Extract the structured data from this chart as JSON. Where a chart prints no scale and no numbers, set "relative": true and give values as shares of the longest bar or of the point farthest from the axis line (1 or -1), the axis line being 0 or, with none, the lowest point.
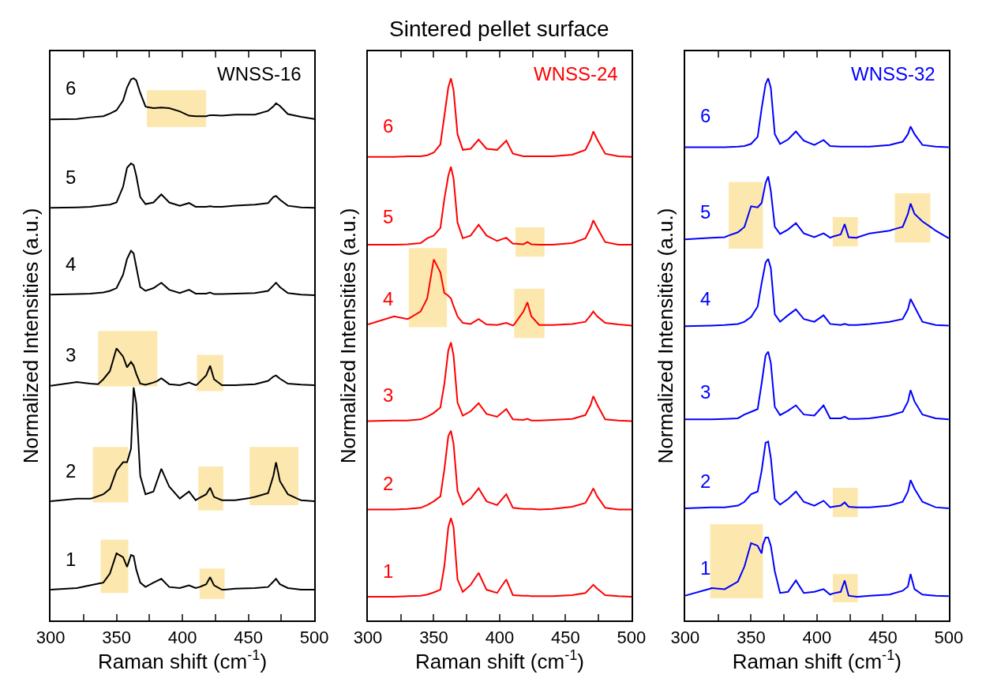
{
  "chart_data": [
    {
      "type": "line",
      "relative": true,
      "legend": false,
      "xlabel": "Raman shift (cm$^{-1}$)",
      "ylabel": "Normalized Intensities (a.u.)",
      "annotations": [
        "WNSS-16"
      ],
      "xlim": [
        300,
        500
      ],
      "xticks": [
        300,
        {
          "value": 325,
          "label": null
        },
        350,
        {
          "value": 375,
          "label": null
        },
        400,
        {
          "value": 425,
          "label": null
        },
        450,
        {
          "value": 475,
          "label": null
        },
        500
      ],
      "x": [
        300,
        320,
        330,
        340,
        345,
        350,
        355,
        358,
        361,
        363,
        365,
        368,
        372,
        378,
        384,
        390,
        398,
        405,
        410,
        418,
        421,
        424,
        430,
        440,
        455,
        465,
        469,
        471,
        474,
        480,
        490,
        500
      ],
      "series": [
        {
          "name": "1",
          "color": "#000000",
          "x": [
            300,
            320,
            330,
            338,
            340,
            345,
            350,
            355,
            358,
            359,
            361,
            363,
            365,
            368,
            372,
            378,
            384,
            390,
            398,
            405,
            410,
            413,
            418,
            421,
            424,
            430,
            432,
            440,
            455,
            465,
            469,
            471,
            474,
            480,
            490,
            500
          ],
          "values": [
            0.057,
            0.06,
            0.065,
            0.069,
            0.07,
            0.087,
            0.124,
            0.117,
            0.099,
            0.106,
            0.121,
            0.119,
            0.094,
            0.07,
            0.062,
            0.07,
            0.077,
            0.062,
            0.06,
            0.065,
            0.06,
            0.062,
            0.067,
            0.08,
            0.065,
            0.057,
            0.057,
            0.059,
            0.06,
            0.062,
            0.072,
            0.077,
            0.067,
            0.06,
            0.057,
            0.057
          ],
          "lower": [
            null,
            null,
            null,
            0.051,
            0.051,
            0.051,
            0.051,
            0.051,
            0.051,
            0.051,
            null,
            null,
            null,
            null,
            null,
            null,
            null,
            null,
            null,
            null,
            null,
            0.04,
            0.04,
            0.04,
            0.04,
            0.04,
            0.04,
            null,
            null,
            null,
            null,
            null,
            null,
            null,
            null,
            null
          ],
          "upper": [
            null,
            null,
            null,
            0.149,
            0.149,
            0.149,
            0.149,
            0.149,
            0.149,
            0.149,
            null,
            null,
            null,
            null,
            null,
            null,
            null,
            null,
            null,
            null,
            null,
            0.096,
            0.096,
            0.096,
            0.096,
            0.096,
            0.096,
            null,
            null,
            null,
            null,
            null,
            null,
            null,
            null,
            null
          ]
        },
        {
          "name": "2",
          "color": "#000000",
          "x": [
            300,
            320,
            330,
            332,
            340,
            345,
            350,
            355,
            358,
            359,
            361,
            363,
            365,
            368,
            372,
            378,
            384,
            390,
            398,
            405,
            410,
            412,
            418,
            421,
            424,
            430,
            431,
            440,
            451,
            455,
            465,
            469,
            471,
            474,
            480,
            488,
            490,
            500
          ],
          "values": [
            0.22,
            0.225,
            0.225,
            0.226,
            0.233,
            0.243,
            0.277,
            0.292,
            0.292,
            0.3,
            0.317,
            0.43,
            0.4,
            0.267,
            0.233,
            0.238,
            0.28,
            0.247,
            0.225,
            0.238,
            0.222,
            0.225,
            0.233,
            0.245,
            0.228,
            0.222,
            0.222,
            0.222,
            0.226,
            0.228,
            0.235,
            0.267,
            0.292,
            0.257,
            0.233,
            0.224,
            0.222,
            0.22
          ],
          "lower": [
            null,
            null,
            null,
            0.218,
            0.218,
            0.218,
            0.218,
            0.218,
            0.218,
            0.218,
            null,
            null,
            null,
            null,
            null,
            null,
            null,
            null,
            null,
            null,
            null,
            0.203,
            0.203,
            0.203,
            0.203,
            0.203,
            0.203,
            null,
            0.213,
            0.213,
            0.213,
            0.213,
            0.213,
            0.213,
            0.213,
            0.213,
            null,
            null
          ],
          "upper": [
            null,
            null,
            null,
            0.32,
            0.32,
            0.32,
            0.32,
            0.32,
            0.32,
            0.32,
            null,
            null,
            null,
            null,
            null,
            null,
            null,
            null,
            null,
            null,
            null,
            0.284,
            0.284,
            0.284,
            0.284,
            0.284,
            0.284,
            null,
            0.32,
            0.32,
            0.32,
            0.32,
            0.32,
            0.32,
            0.32,
            0.32,
            null,
            null
          ]
        },
        {
          "name": "3",
          "color": "#000000",
          "x": [
            300,
            320,
            330,
            336,
            340,
            345,
            350,
            355,
            358,
            361,
            363,
            365,
            368,
            372,
            378,
            381,
            384,
            390,
            398,
            405,
            410,
            411,
            418,
            421,
            424,
            430,
            431,
            440,
            455,
            465,
            469,
            471,
            474,
            480,
            490,
            500
          ],
          "values": [
            0.433,
            0.44,
            0.437,
            0.436,
            0.445,
            0.46,
            0.502,
            0.487,
            0.467,
            0.477,
            0.47,
            0.455,
            0.437,
            0.435,
            0.439,
            0.442,
            0.447,
            0.436,
            0.434,
            0.439,
            0.434,
            0.435,
            0.452,
            0.47,
            0.445,
            0.434,
            0.434,
            0.434,
            0.436,
            0.442,
            0.45,
            0.452,
            0.446,
            0.437,
            0.435,
            0.434
          ],
          "lower": [
            null,
            null,
            null,
            0.432,
            0.432,
            0.432,
            0.432,
            0.432,
            0.432,
            0.432,
            0.432,
            0.432,
            0.432,
            0.432,
            0.432,
            0.432,
            null,
            null,
            null,
            null,
            null,
            0.423,
            0.423,
            0.423,
            0.423,
            0.423,
            0.423,
            null,
            null,
            null,
            null,
            null,
            null,
            null,
            null,
            null
          ],
          "upper": [
            null,
            null,
            null,
            0.534,
            0.534,
            0.534,
            0.534,
            0.534,
            0.534,
            0.534,
            0.534,
            0.534,
            0.534,
            0.534,
            0.534,
            0.534,
            null,
            null,
            null,
            null,
            null,
            0.49,
            0.49,
            0.49,
            0.49,
            0.49,
            0.49,
            null,
            null,
            null,
            null,
            null,
            null,
            null,
            null,
            null
          ]
        },
        {
          "name": "4",
          "color": "#000000",
          "values": [
            0.601,
            0.602,
            0.603,
            0.605,
            0.608,
            0.613,
            0.638,
            0.667,
            0.682,
            0.677,
            0.652,
            0.615,
            0.608,
            0.613,
            0.623,
            0.61,
            0.604,
            0.61,
            0.603,
            0.603,
            0.605,
            0.602,
            0.602,
            0.603,
            0.604,
            0.608,
            0.618,
            0.623,
            0.615,
            0.604,
            0.601,
            0.6
          ]
        },
        {
          "name": "5",
          "color": "#000000",
          "values": [
            0.761,
            0.762,
            0.763,
            0.766,
            0.767,
            0.771,
            0.8,
            0.835,
            0.843,
            0.84,
            0.82,
            0.781,
            0.768,
            0.771,
            0.786,
            0.771,
            0.765,
            0.77,
            0.763,
            0.763,
            0.764,
            0.763,
            0.763,
            0.765,
            0.767,
            0.77,
            0.781,
            0.783,
            0.776,
            0.765,
            0.762,
            0.761
          ]
        },
        {
          "name": "6",
          "color": "#000000",
          "x": [
            300,
            320,
            330,
            340,
            345,
            350,
            355,
            358,
            361,
            363,
            365,
            368,
            372,
            373,
            378,
            384,
            390,
            398,
            405,
            410,
            418,
            421,
            424,
            430,
            440,
            455,
            465,
            469,
            471,
            474,
            480,
            490,
            500
          ],
          "values": [
            0.924,
            0.925,
            0.928,
            0.93,
            0.935,
            0.941,
            0.959,
            0.983,
            0.998,
            1.0,
            0.996,
            0.973,
            0.948,
            0.947,
            0.945,
            0.946,
            0.945,
            0.939,
            0.931,
            0.93,
            0.93,
            0.932,
            0.932,
            0.931,
            0.933,
            0.933,
            0.94,
            0.948,
            0.954,
            0.949,
            0.934,
            0.929,
            0.925
          ],
          "lower": [
            null,
            null,
            null,
            null,
            null,
            null,
            null,
            null,
            null,
            null,
            null,
            null,
            null,
            0.91,
            0.91,
            0.91,
            0.91,
            0.91,
            0.91,
            0.91,
            0.91,
            null,
            null,
            null,
            null,
            null,
            null,
            null,
            null,
            null,
            null,
            null,
            null
          ],
          "upper": [
            null,
            null,
            null,
            null,
            null,
            null,
            null,
            null,
            null,
            null,
            null,
            null,
            null,
            0.978,
            0.978,
            0.978,
            0.978,
            0.978,
            0.978,
            0.978,
            0.978,
            null,
            null,
            null,
            null,
            null,
            null,
            null,
            null,
            null,
            null,
            null,
            null
          ]
        }
      ]
    },
    {
      "type": "line",
      "relative": true,
      "legend": false,
      "title": "Sintered pellet surface",
      "xlabel": "Raman shift (cm$^{-1}$)",
      "ylabel": "Normalized Intensities (a.u.)",
      "annotations": [
        "WNSS-24"
      ],
      "xlim": [
        300,
        500
      ],
      "xticks": [
        300,
        {
          "value": 325,
          "label": null
        },
        350,
        {
          "value": 375,
          "label": null
        },
        400,
        {
          "value": 425,
          "label": null
        },
        450,
        {
          "value": 475,
          "label": null
        },
        500
      ],
      "x": [
        300,
        320,
        330,
        340,
        345,
        350,
        355,
        358,
        361,
        363,
        365,
        368,
        372,
        378,
        384,
        390,
        398,
        405,
        410,
        418,
        421,
        424,
        430,
        440,
        455,
        465,
        469,
        471,
        474,
        480,
        490,
        500
      ],
      "series": [
        {
          "name": "1",
          "color": "#ff0000",
          "values": [
            0.044,
            0.044,
            0.045,
            0.046,
            0.048,
            0.052,
            0.057,
            0.1,
            0.172,
            0.189,
            0.172,
            0.076,
            0.053,
            0.066,
            0.088,
            0.057,
            0.051,
            0.076,
            0.047,
            0.046,
            0.046,
            0.045,
            0.045,
            0.045,
            0.047,
            0.051,
            0.061,
            0.066,
            0.059,
            0.047,
            0.045,
            0.044
          ]
        },
        {
          "name": "2",
          "color": "#ff0000",
          "values": [
            0.205,
            0.205,
            0.206,
            0.208,
            0.213,
            0.22,
            0.229,
            0.278,
            0.34,
            0.35,
            0.326,
            0.239,
            0.214,
            0.225,
            0.244,
            0.22,
            0.213,
            0.233,
            0.208,
            0.206,
            0.206,
            0.206,
            0.205,
            0.206,
            0.21,
            0.217,
            0.234,
            0.244,
            0.229,
            0.208,
            0.205,
            0.205
          ]
        },
        {
          "name": "3",
          "color": "#ff0000",
          "values": [
            0.368,
            0.369,
            0.369,
            0.371,
            0.376,
            0.383,
            0.393,
            0.436,
            0.498,
            0.513,
            0.489,
            0.402,
            0.378,
            0.386,
            0.401,
            0.381,
            0.376,
            0.39,
            0.371,
            0.37,
            0.372,
            0.369,
            0.369,
            0.37,
            0.372,
            0.379,
            0.398,
            0.414,
            0.398,
            0.371,
            0.369,
            0.368
          ]
        },
        {
          "name": "4",
          "color": "#ff0000",
          "x": [
            300,
            320,
            330,
            331,
            340,
            345,
            350,
            355,
            358,
            360,
            361,
            363,
            365,
            368,
            372,
            378,
            384,
            390,
            398,
            405,
            410,
            411,
            418,
            421,
            424,
            430,
            434,
            440,
            455,
            465,
            469,
            471,
            474,
            480,
            490,
            500
          ],
          "values": [
            0.546,
            0.561,
            0.556,
            0.557,
            0.57,
            0.594,
            0.666,
            0.642,
            0.604,
            0.601,
            0.599,
            0.594,
            0.58,
            0.561,
            0.549,
            0.547,
            0.556,
            0.546,
            0.545,
            0.549,
            0.544,
            0.546,
            0.57,
            0.587,
            0.561,
            0.545,
            0.545,
            0.545,
            0.547,
            0.551,
            0.563,
            0.57,
            0.561,
            0.549,
            0.546,
            0.544
          ],
          "lower": [
            null,
            null,
            null,
            0.541,
            0.541,
            0.541,
            0.541,
            0.541,
            0.541,
            0.541,
            null,
            null,
            null,
            null,
            null,
            null,
            null,
            null,
            null,
            null,
            null,
            0.521,
            0.521,
            0.521,
            0.521,
            0.521,
            0.521,
            null,
            null,
            null,
            null,
            null,
            null,
            null,
            null,
            null
          ],
          "upper": [
            null,
            null,
            null,
            0.687,
            0.687,
            0.687,
            0.687,
            0.687,
            0.687,
            0.687,
            null,
            null,
            null,
            null,
            null,
            null,
            null,
            null,
            null,
            null,
            null,
            0.612,
            0.612,
            0.612,
            0.612,
            0.612,
            0.612,
            null,
            null,
            null,
            null,
            null,
            null,
            null,
            null,
            null
          ]
        },
        {
          "name": "5",
          "color": "#ff0000",
          "x": [
            300,
            320,
            330,
            340,
            345,
            350,
            355,
            358,
            361,
            363,
            365,
            368,
            372,
            378,
            384,
            390,
            398,
            405,
            410,
            412,
            418,
            421,
            424,
            430,
            434,
            440,
            455,
            465,
            469,
            471,
            474,
            480,
            490,
            500
          ],
          "values": [
            0.693,
            0.693,
            0.694,
            0.696,
            0.705,
            0.71,
            0.724,
            0.777,
            0.82,
            0.837,
            0.815,
            0.734,
            0.705,
            0.71,
            0.73,
            0.71,
            0.7,
            0.706,
            0.695,
            0.695,
            0.694,
            0.698,
            0.694,
            0.693,
            0.693,
            0.693,
            0.696,
            0.705,
            0.724,
            0.738,
            0.724,
            0.698,
            0.693,
            0.693
          ],
          "lower": [
            null,
            null,
            null,
            null,
            null,
            null,
            null,
            null,
            null,
            null,
            null,
            null,
            null,
            null,
            null,
            null,
            null,
            null,
            null,
            0.671,
            0.671,
            0.671,
            0.671,
            0.671,
            0.671,
            null,
            null,
            null,
            null,
            null,
            null,
            null,
            null,
            null
          ],
          "upper": [
            null,
            null,
            null,
            null,
            null,
            null,
            null,
            null,
            null,
            null,
            null,
            null,
            null,
            null,
            null,
            null,
            null,
            null,
            null,
            0.725,
            0.725,
            0.725,
            0.725,
            0.725,
            0.725,
            null,
            null,
            null,
            null,
            null,
            null,
            null,
            null,
            null
          ]
        },
        {
          "name": "6",
          "color": "#ff0000",
          "values": [
            0.855,
            0.855,
            0.856,
            0.856,
            0.858,
            0.863,
            0.878,
            0.93,
            0.983,
            1.0,
            0.978,
            0.897,
            0.868,
            0.87,
            0.887,
            0.87,
            0.868,
            0.885,
            0.861,
            0.856,
            0.856,
            0.856,
            0.856,
            0.856,
            0.859,
            0.868,
            0.887,
            0.902,
            0.887,
            0.861,
            0.856,
            0.855
          ]
        }
      ]
    },
    {
      "type": "line",
      "relative": true,
      "legend": false,
      "xlabel": "Raman shift (cm$^{-1}$)",
      "ylabel": "Normalized Intensities (a.u.)",
      "annotations": [
        "WNSS-32"
      ],
      "xlim": [
        300,
        500
      ],
      "xticks": [
        300,
        {
          "value": 325,
          "label": null
        },
        350,
        {
          "value": 375,
          "label": null
        },
        400,
        {
          "value": 425,
          "label": null
        },
        450,
        {
          "value": 475,
          "label": null
        },
        500
      ],
      "x": [
        300,
        320,
        330,
        340,
        345,
        350,
        355,
        358,
        361,
        363,
        365,
        368,
        372,
        378,
        384,
        390,
        398,
        405,
        410,
        418,
        421,
        424,
        430,
        440,
        455,
        465,
        469,
        471,
        474,
        480,
        490,
        500
      ],
      "series": [
        {
          "name": "1",
          "color": "#0000ff",
          "x": [
            300,
            319,
            320,
            330,
            340,
            345,
            350,
            355,
            358,
            359,
            361,
            363,
            365,
            368,
            372,
            378,
            384,
            390,
            398,
            405,
            410,
            412,
            418,
            421,
            424,
            430,
            431,
            440,
            455,
            465,
            469,
            471,
            474,
            480,
            490,
            500
          ],
          "values": [
            0.046,
            0.059,
            0.06,
            0.058,
            0.072,
            0.1,
            0.143,
            0.138,
            0.124,
            0.14,
            0.153,
            0.153,
            0.138,
            0.091,
            0.051,
            0.053,
            0.074,
            0.051,
            0.053,
            0.058,
            0.048,
            0.05,
            0.053,
            0.074,
            0.046,
            0.044,
            0.044,
            0.046,
            0.048,
            0.055,
            0.063,
            0.086,
            0.058,
            0.048,
            0.046,
            0.045
          ],
          "lower": [
            null,
            0.041,
            0.041,
            0.041,
            0.041,
            0.041,
            0.041,
            0.041,
            0.041,
            0.041,
            null,
            null,
            null,
            null,
            null,
            null,
            null,
            null,
            null,
            null,
            null,
            0.034,
            0.034,
            0.034,
            0.034,
            0.034,
            0.034,
            null,
            null,
            null,
            null,
            null,
            null,
            null,
            null,
            null
          ],
          "upper": [
            null,
            0.178,
            0.178,
            0.178,
            0.178,
            0.178,
            0.178,
            0.178,
            0.178,
            0.178,
            null,
            null,
            null,
            null,
            null,
            null,
            null,
            null,
            null,
            null,
            null,
            0.086,
            0.086,
            0.086,
            0.086,
            0.086,
            0.086,
            null,
            null,
            null,
            null,
            null,
            null,
            null,
            null,
            null
          ]
        },
        {
          "name": "2",
          "color": "#0000ff",
          "x": [
            300,
            320,
            330,
            340,
            345,
            350,
            355,
            358,
            361,
            363,
            365,
            368,
            372,
            378,
            384,
            390,
            398,
            405,
            410,
            412,
            418,
            421,
            424,
            430,
            431,
            440,
            455,
            465,
            469,
            471,
            474,
            480,
            490,
            500
          ],
          "values": [
            0.207,
            0.209,
            0.209,
            0.212,
            0.219,
            0.233,
            0.238,
            0.276,
            0.328,
            0.33,
            0.3,
            0.224,
            0.214,
            0.224,
            0.238,
            0.219,
            0.212,
            0.221,
            0.209,
            0.21,
            0.212,
            0.218,
            0.21,
            0.209,
            0.209,
            0.209,
            0.212,
            0.219,
            0.238,
            0.259,
            0.243,
            0.219,
            0.209,
            0.207
          ],
          "lower": [
            null,
            null,
            null,
            null,
            null,
            null,
            null,
            null,
            null,
            null,
            null,
            null,
            null,
            null,
            null,
            null,
            null,
            null,
            null,
            0.191,
            0.191,
            0.191,
            0.191,
            0.191,
            0.191,
            null,
            null,
            null,
            null,
            null,
            null,
            null,
            null,
            null
          ],
          "upper": [
            null,
            null,
            null,
            null,
            null,
            null,
            null,
            null,
            null,
            null,
            null,
            null,
            null,
            null,
            null,
            null,
            null,
            null,
            null,
            0.245,
            0.245,
            0.245,
            0.245,
            0.245,
            0.245,
            null,
            null,
            null,
            null,
            null,
            null,
            null,
            null,
            null
          ]
        },
        {
          "name": "3",
          "color": "#0000ff",
          "values": [
            0.371,
            0.371,
            0.372,
            0.373,
            0.38,
            0.385,
            0.39,
            0.437,
            0.489,
            0.496,
            0.475,
            0.394,
            0.379,
            0.387,
            0.397,
            0.38,
            0.378,
            0.397,
            0.373,
            0.373,
            0.376,
            0.372,
            0.372,
            0.373,
            0.378,
            0.385,
            0.404,
            0.425,
            0.404,
            0.38,
            0.373,
            0.371
          ]
        },
        {
          "name": "4",
          "color": "#0000ff",
          "values": [
            0.543,
            0.544,
            0.545,
            0.547,
            0.551,
            0.56,
            0.579,
            0.622,
            0.66,
            0.667,
            0.65,
            0.565,
            0.551,
            0.563,
            0.574,
            0.556,
            0.551,
            0.563,
            0.547,
            0.545,
            0.547,
            0.545,
            0.545,
            0.547,
            0.551,
            0.556,
            0.574,
            0.593,
            0.579,
            0.551,
            0.545,
            0.544
          ]
        },
        {
          "name": "5",
          "color": "#0000ff",
          "x": [
            300,
            320,
            330,
            333,
            340,
            345,
            350,
            355,
            358,
            359,
            361,
            363,
            365,
            368,
            372,
            378,
            384,
            390,
            398,
            405,
            410,
            412,
            418,
            421,
            424,
            430,
            431,
            440,
            455,
            459,
            465,
            469,
            471,
            474,
            480,
            486,
            490,
            500
          ],
          "values": [
            0.703,
            0.706,
            0.707,
            0.71,
            0.716,
            0.726,
            0.764,
            0.762,
            0.77,
            0.782,
            0.807,
            0.819,
            0.792,
            0.726,
            0.713,
            0.721,
            0.733,
            0.714,
            0.707,
            0.714,
            0.706,
            0.708,
            0.712,
            0.731,
            0.707,
            0.706,
            0.707,
            0.714,
            0.719,
            0.722,
            0.726,
            0.75,
            0.769,
            0.75,
            0.736,
            0.726,
            0.719,
            0.705
          ],
          "lower": [
            null,
            null,
            null,
            0.686,
            0.686,
            0.686,
            0.686,
            0.686,
            0.686,
            0.686,
            null,
            null,
            null,
            null,
            null,
            null,
            null,
            null,
            null,
            null,
            null,
            0.69,
            0.69,
            0.69,
            0.69,
            0.69,
            0.69,
            null,
            null,
            0.697,
            0.697,
            0.697,
            0.697,
            0.697,
            0.697,
            0.697,
            null,
            null
          ],
          "upper": [
            null,
            null,
            null,
            0.809,
            0.809,
            0.809,
            0.809,
            0.809,
            0.809,
            0.809,
            null,
            null,
            null,
            null,
            null,
            null,
            null,
            null,
            null,
            null,
            null,
            0.744,
            0.744,
            0.744,
            0.744,
            0.744,
            0.744,
            null,
            null,
            0.788,
            0.788,
            0.788,
            0.788,
            0.788,
            0.788,
            0.788,
            null,
            null
          ]
        },
        {
          "name": "6",
          "color": "#0000ff",
          "values": [
            0.873,
            0.873,
            0.873,
            0.874,
            0.875,
            0.879,
            0.892,
            0.944,
            0.989,
            1.0,
            0.982,
            0.897,
            0.879,
            0.887,
            0.902,
            0.885,
            0.877,
            0.886,
            0.875,
            0.874,
            0.874,
            0.874,
            0.874,
            0.874,
            0.877,
            0.883,
            0.897,
            0.911,
            0.897,
            0.877,
            0.874,
            0.873
          ]
        }
      ]
    }
  ]
}
